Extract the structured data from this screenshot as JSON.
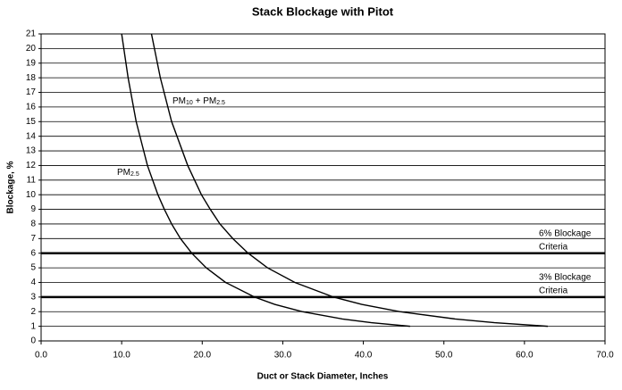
{
  "chart_data": {
    "type": "line",
    "title": "Stack Blockage with Pitot",
    "xlabel": "Duct or Stack Diameter, Inches",
    "ylabel": "Blockage, %",
    "xlim": [
      0,
      70
    ],
    "ylim": [
      0,
      21
    ],
    "xticks": [
      {
        "value": 0,
        "label": "0.0"
      },
      {
        "value": 10,
        "label": "10.0"
      },
      {
        "value": 20,
        "label": "20.0"
      },
      {
        "value": 30,
        "label": "30.0"
      },
      {
        "value": 40,
        "label": "40.0"
      },
      {
        "value": 50,
        "label": "50.0"
      },
      {
        "value": 60,
        "label": "60.0"
      },
      {
        "value": 70,
        "label": "70.0"
      }
    ],
    "yticks": [
      0,
      1,
      2,
      3,
      4,
      5,
      6,
      7,
      8,
      9,
      10,
      11,
      12,
      13,
      14,
      15,
      16,
      17,
      18,
      19,
      20,
      21
    ],
    "grid": true,
    "series": [
      {
        "color": "#000000",
        "x": [
          10.0,
          10.8,
          11.8,
          13.2,
          14.5,
          15.3,
          16.2,
          17.3,
          18.7,
          20.5,
          22.9,
          26.5,
          29.0,
          32.4,
          37.4,
          41.0,
          45.8
        ],
        "values": [
          21,
          18,
          15,
          12,
          10,
          9,
          8,
          7,
          6,
          5,
          4,
          3,
          2.5,
          2,
          1.5,
          1.25,
          1
        ]
      },
      {
        "color": "#000000",
        "x": [
          13.7,
          14.8,
          16.2,
          18.2,
          19.9,
          21.0,
          22.2,
          23.8,
          25.7,
          28.1,
          31.5,
          36.3,
          39.8,
          44.5,
          51.4,
          56.3,
          62.9
        ],
        "values": [
          21,
          18,
          15,
          12,
          10,
          9,
          8,
          7,
          6,
          5,
          4,
          3,
          2.5,
          2,
          1.5,
          1.25,
          1
        ]
      }
    ],
    "annotations": [
      {
        "runs": [
          {
            "text": "PM"
          },
          {
            "text": "10",
            "sub": true
          },
          {
            "text": " + PM"
          },
          {
            "text": "2.5",
            "sub": true
          }
        ]
      },
      {
        "runs": [
          {
            "text": "PM"
          },
          {
            "text": "2.5",
            "sub": true
          }
        ]
      }
    ],
    "hlines": [
      {
        "value": 6,
        "label": [
          "6% Blockage",
          "Criteria"
        ]
      },
      {
        "value": 3,
        "label": [
          "3% Blockage",
          "Criteria"
        ]
      }
    ]
  }
}
